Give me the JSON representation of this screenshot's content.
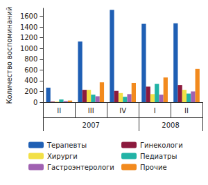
{
  "chart_data": {
    "type": "bar",
    "y_label": "Количество воспоминаний",
    "categories": [
      "II",
      "III",
      "IV",
      "I",
      "II"
    ],
    "x_groups": [
      {
        "label": "2007",
        "span": 3
      },
      {
        "label": "2008",
        "span": 2
      }
    ],
    "series": [
      {
        "name": "Терапевты",
        "color": "#1f5fb4",
        "values": [
          270,
          1130,
          1720,
          1460,
          1470
        ]
      },
      {
        "name": "Гинекологи",
        "color": "#8c1a3e",
        "values": [
          10,
          230,
          210,
          290,
          320
        ]
      },
      {
        "name": "Хирурги",
        "color": "#f2e046",
        "values": [
          10,
          230,
          170,
          150,
          230
        ]
      },
      {
        "name": "Педиатры",
        "color": "#22b3a6",
        "values": [
          50,
          140,
          100,
          340,
          160
        ]
      },
      {
        "name": "Гастроэнтерологи",
        "color": "#a061b1",
        "values": [
          20,
          110,
          150,
          140,
          200
        ]
      },
      {
        "name": "Прочие",
        "color": "#f28a1e",
        "values": [
          30,
          370,
          360,
          460,
          620
        ]
      }
    ],
    "ylim": [
      0,
      1750
    ],
    "yticks": [
      0,
      200,
      400,
      600,
      800,
      1000,
      1200,
      1400,
      1600
    ],
    "grid": false,
    "legend": "bottom"
  }
}
